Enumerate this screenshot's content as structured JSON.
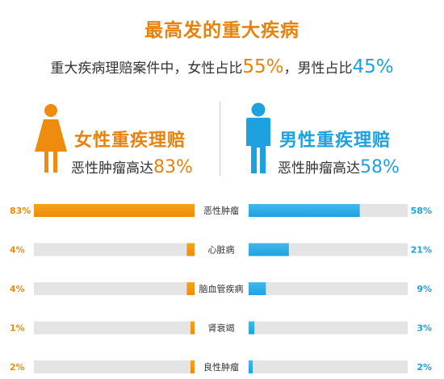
{
  "header": {
    "title": "最高发的重大疾病",
    "subtitle_prefix": "重大疾病理赔案件中，女性占比",
    "female_share": "55%",
    "subtitle_mid": "，男性占比",
    "male_share": "45%"
  },
  "female": {
    "heading": "女性重疾理赔",
    "sub_prefix": "恶性肿瘤高达",
    "sub_value": "83%"
  },
  "male": {
    "heading": "男性重疾理赔",
    "sub_prefix": "恶性肿瘤高达",
    "sub_value": "58%"
  },
  "colors": {
    "female": "#ef8b0d",
    "female_light": "#f6a21b",
    "male": "#1ea2df",
    "male_light": "#45b8ec",
    "track": "#e4e4e4",
    "label_text": "#333333"
  },
  "icons": {
    "female": "female-figure-icon",
    "male": "male-figure-icon"
  },
  "chart_data": {
    "type": "bar",
    "categories": [
      "恶性肿瘤",
      "心脏病",
      "脑血管疾病",
      "肾衰竭",
      "良性肿瘤"
    ],
    "series": [
      {
        "name": "女性重疾理赔",
        "values": [
          83,
          4,
          4,
          1,
          2
        ],
        "labels": [
          "83%",
          "4%",
          "4%",
          "1%",
          "2%"
        ]
      },
      {
        "name": "男性重疾理赔",
        "values": [
          58,
          21,
          9,
          3,
          2
        ],
        "labels": [
          "58%",
          "21%",
          "9%",
          "3%",
          "2%"
        ]
      }
    ],
    "ylim": [
      0,
      83
    ]
  }
}
